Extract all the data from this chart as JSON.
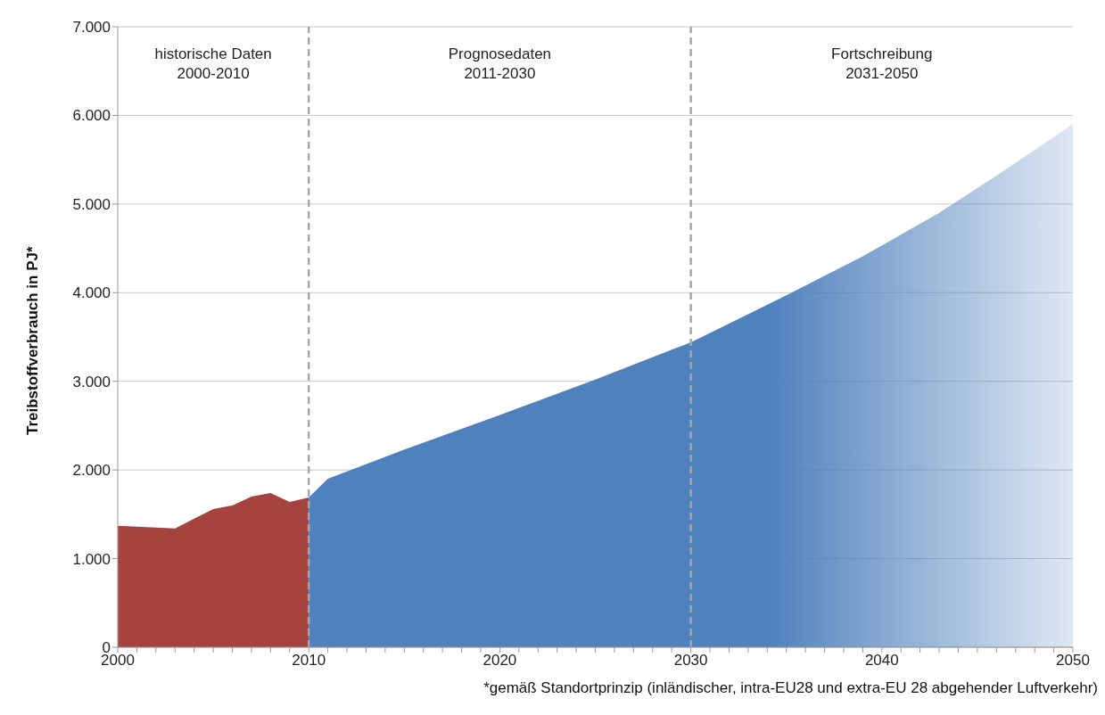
{
  "chart_data": {
    "type": "area",
    "ylabel": "Treibstoffverbrauch in PJ*",
    "series": [
      {
        "color": "#a5443f",
        "x": [
          2000,
          2001,
          2002,
          2003,
          2004,
          2005,
          2006,
          2007,
          2008,
          2009,
          2010
        ],
        "values": [
          1370,
          1360,
          1350,
          1340,
          1450,
          1560,
          1600,
          1700,
          1740,
          1640,
          1690
        ]
      },
      {
        "color": "#4f81bd",
        "x": [
          2010,
          2011,
          2015,
          2020,
          2025,
          2030,
          2032,
          2035,
          2039,
          2043,
          2046,
          2050
        ],
        "values": [
          1690,
          1900,
          2230,
          2620,
          3020,
          3440,
          3650,
          3970,
          4410,
          4900,
          5320,
          5900
        ]
      }
    ],
    "xlim": [
      2000,
      2050
    ],
    "xticks": [
      2000,
      {
        "value": 2001,
        "label": null
      },
      {
        "value": 2002,
        "label": null
      },
      {
        "value": 2003,
        "label": null
      },
      {
        "value": 2004,
        "label": null
      },
      {
        "value": 2005,
        "label": null
      },
      {
        "value": 2006,
        "label": null
      },
      {
        "value": 2007,
        "label": null
      },
      {
        "value": 2008,
        "label": null
      },
      {
        "value": 2009,
        "label": null
      },
      2010,
      {
        "value": 2011,
        "label": null
      },
      {
        "value": 2012,
        "label": null
      },
      {
        "value": 2013,
        "label": null
      },
      {
        "value": 2014,
        "label": null
      },
      {
        "value": 2015,
        "label": null
      },
      {
        "value": 2016,
        "label": null
      },
      {
        "value": 2017,
        "label": null
      },
      {
        "value": 2018,
        "label": null
      },
      {
        "value": 2019,
        "label": null
      },
      2020,
      {
        "value": 2021,
        "label": null
      },
      {
        "value": 2022,
        "label": null
      },
      {
        "value": 2023,
        "label": null
      },
      {
        "value": 2024,
        "label": null
      },
      {
        "value": 2025,
        "label": null
      },
      {
        "value": 2026,
        "label": null
      },
      {
        "value": 2027,
        "label": null
      },
      {
        "value": 2028,
        "label": null
      },
      {
        "value": 2029,
        "label": null
      },
      2030,
      {
        "value": 2031,
        "label": null
      },
      {
        "value": 2032,
        "label": null
      },
      {
        "value": 2033,
        "label": null
      },
      {
        "value": 2034,
        "label": null
      },
      {
        "value": 2035,
        "label": null
      },
      {
        "value": 2036,
        "label": null
      },
      {
        "value": 2037,
        "label": null
      },
      {
        "value": 2038,
        "label": null
      },
      {
        "value": 2039,
        "label": null
      },
      2040,
      {
        "value": 2041,
        "label": null
      },
      {
        "value": 2042,
        "label": null
      },
      {
        "value": 2043,
        "label": null
      },
      {
        "value": 2044,
        "label": null
      },
      {
        "value": 2045,
        "label": null
      },
      {
        "value": 2046,
        "label": null
      },
      {
        "value": 2047,
        "label": null
      },
      {
        "value": 2048,
        "label": null
      },
      {
        "value": 2049,
        "label": null
      },
      2050
    ],
    "ylim": [
      0,
      7000
    ],
    "yticks": [
      0,
      {
        "value": 1000,
        "label": "1.000"
      },
      {
        "value": 2000,
        "label": "2.000"
      },
      {
        "value": 3000,
        "label": "3.000"
      },
      {
        "value": 4000,
        "label": "4.000"
      },
      {
        "value": 5000,
        "label": "5.000"
      },
      {
        "value": 6000,
        "label": "6.000"
      },
      {
        "value": 7000,
        "label": "7.000"
      }
    ],
    "grid": "y",
    "legend": false,
    "ref_lines": [
      {
        "axis": "x",
        "value": 2010,
        "color": "#a6a6a6",
        "line_style": "dashed"
      },
      {
        "axis": "x",
        "value": 2030,
        "color": "#a6a6a6",
        "line_style": "dashed"
      }
    ],
    "annotations": [
      "historische Daten\n2000-2010",
      "Prognosedaten\n2011-2030",
      "Fortschreibung\n2031-2050",
      "*gemäß Standortprinzip (inländischer, intra-EU28 und extra-EU 28 abgehender Luftverkehr)"
    ]
  }
}
